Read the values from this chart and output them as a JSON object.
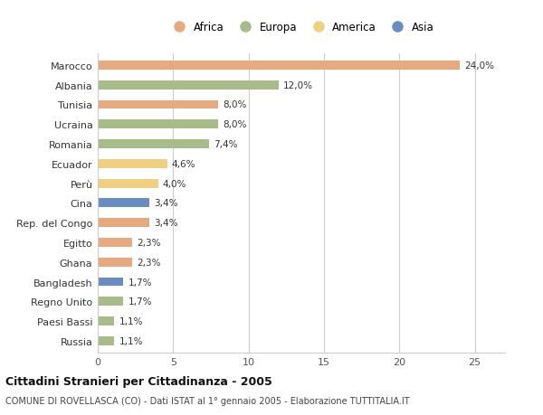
{
  "countries": [
    "Marocco",
    "Albania",
    "Tunisia",
    "Ucraina",
    "Romania",
    "Ecuador",
    "Perù",
    "Cina",
    "Rep. del Congo",
    "Egitto",
    "Ghana",
    "Bangladesh",
    "Regno Unito",
    "Paesi Bassi",
    "Russia"
  ],
  "values": [
    24.0,
    12.0,
    8.0,
    8.0,
    7.4,
    4.6,
    4.0,
    3.4,
    3.4,
    2.3,
    2.3,
    1.7,
    1.7,
    1.1,
    1.1
  ],
  "categories": [
    "Africa",
    "Europa",
    "Africa",
    "Europa",
    "Europa",
    "America",
    "America",
    "Asia",
    "Africa",
    "Africa",
    "Africa",
    "Asia",
    "Europa",
    "Europa",
    "Europa"
  ],
  "colors": {
    "Africa": "#E8A97E",
    "Europa": "#A8BC8A",
    "America": "#F0D080",
    "Asia": "#6B8CC2"
  },
  "legend_order": [
    "Africa",
    "Europa",
    "America",
    "Asia"
  ],
  "title": "Cittadini Stranieri per Cittadinanza - 2005",
  "subtitle": "COMUNE DI ROVELLASCA (CO) - Dati ISTAT al 1° gennaio 2005 - Elaborazione TUTTITALIA.IT",
  "xlim": [
    0,
    27
  ],
  "xticks": [
    0,
    5,
    10,
    15,
    20,
    25
  ],
  "background_color": "#FFFFFF",
  "grid_color": "#CCCCCC",
  "bar_height": 0.45
}
